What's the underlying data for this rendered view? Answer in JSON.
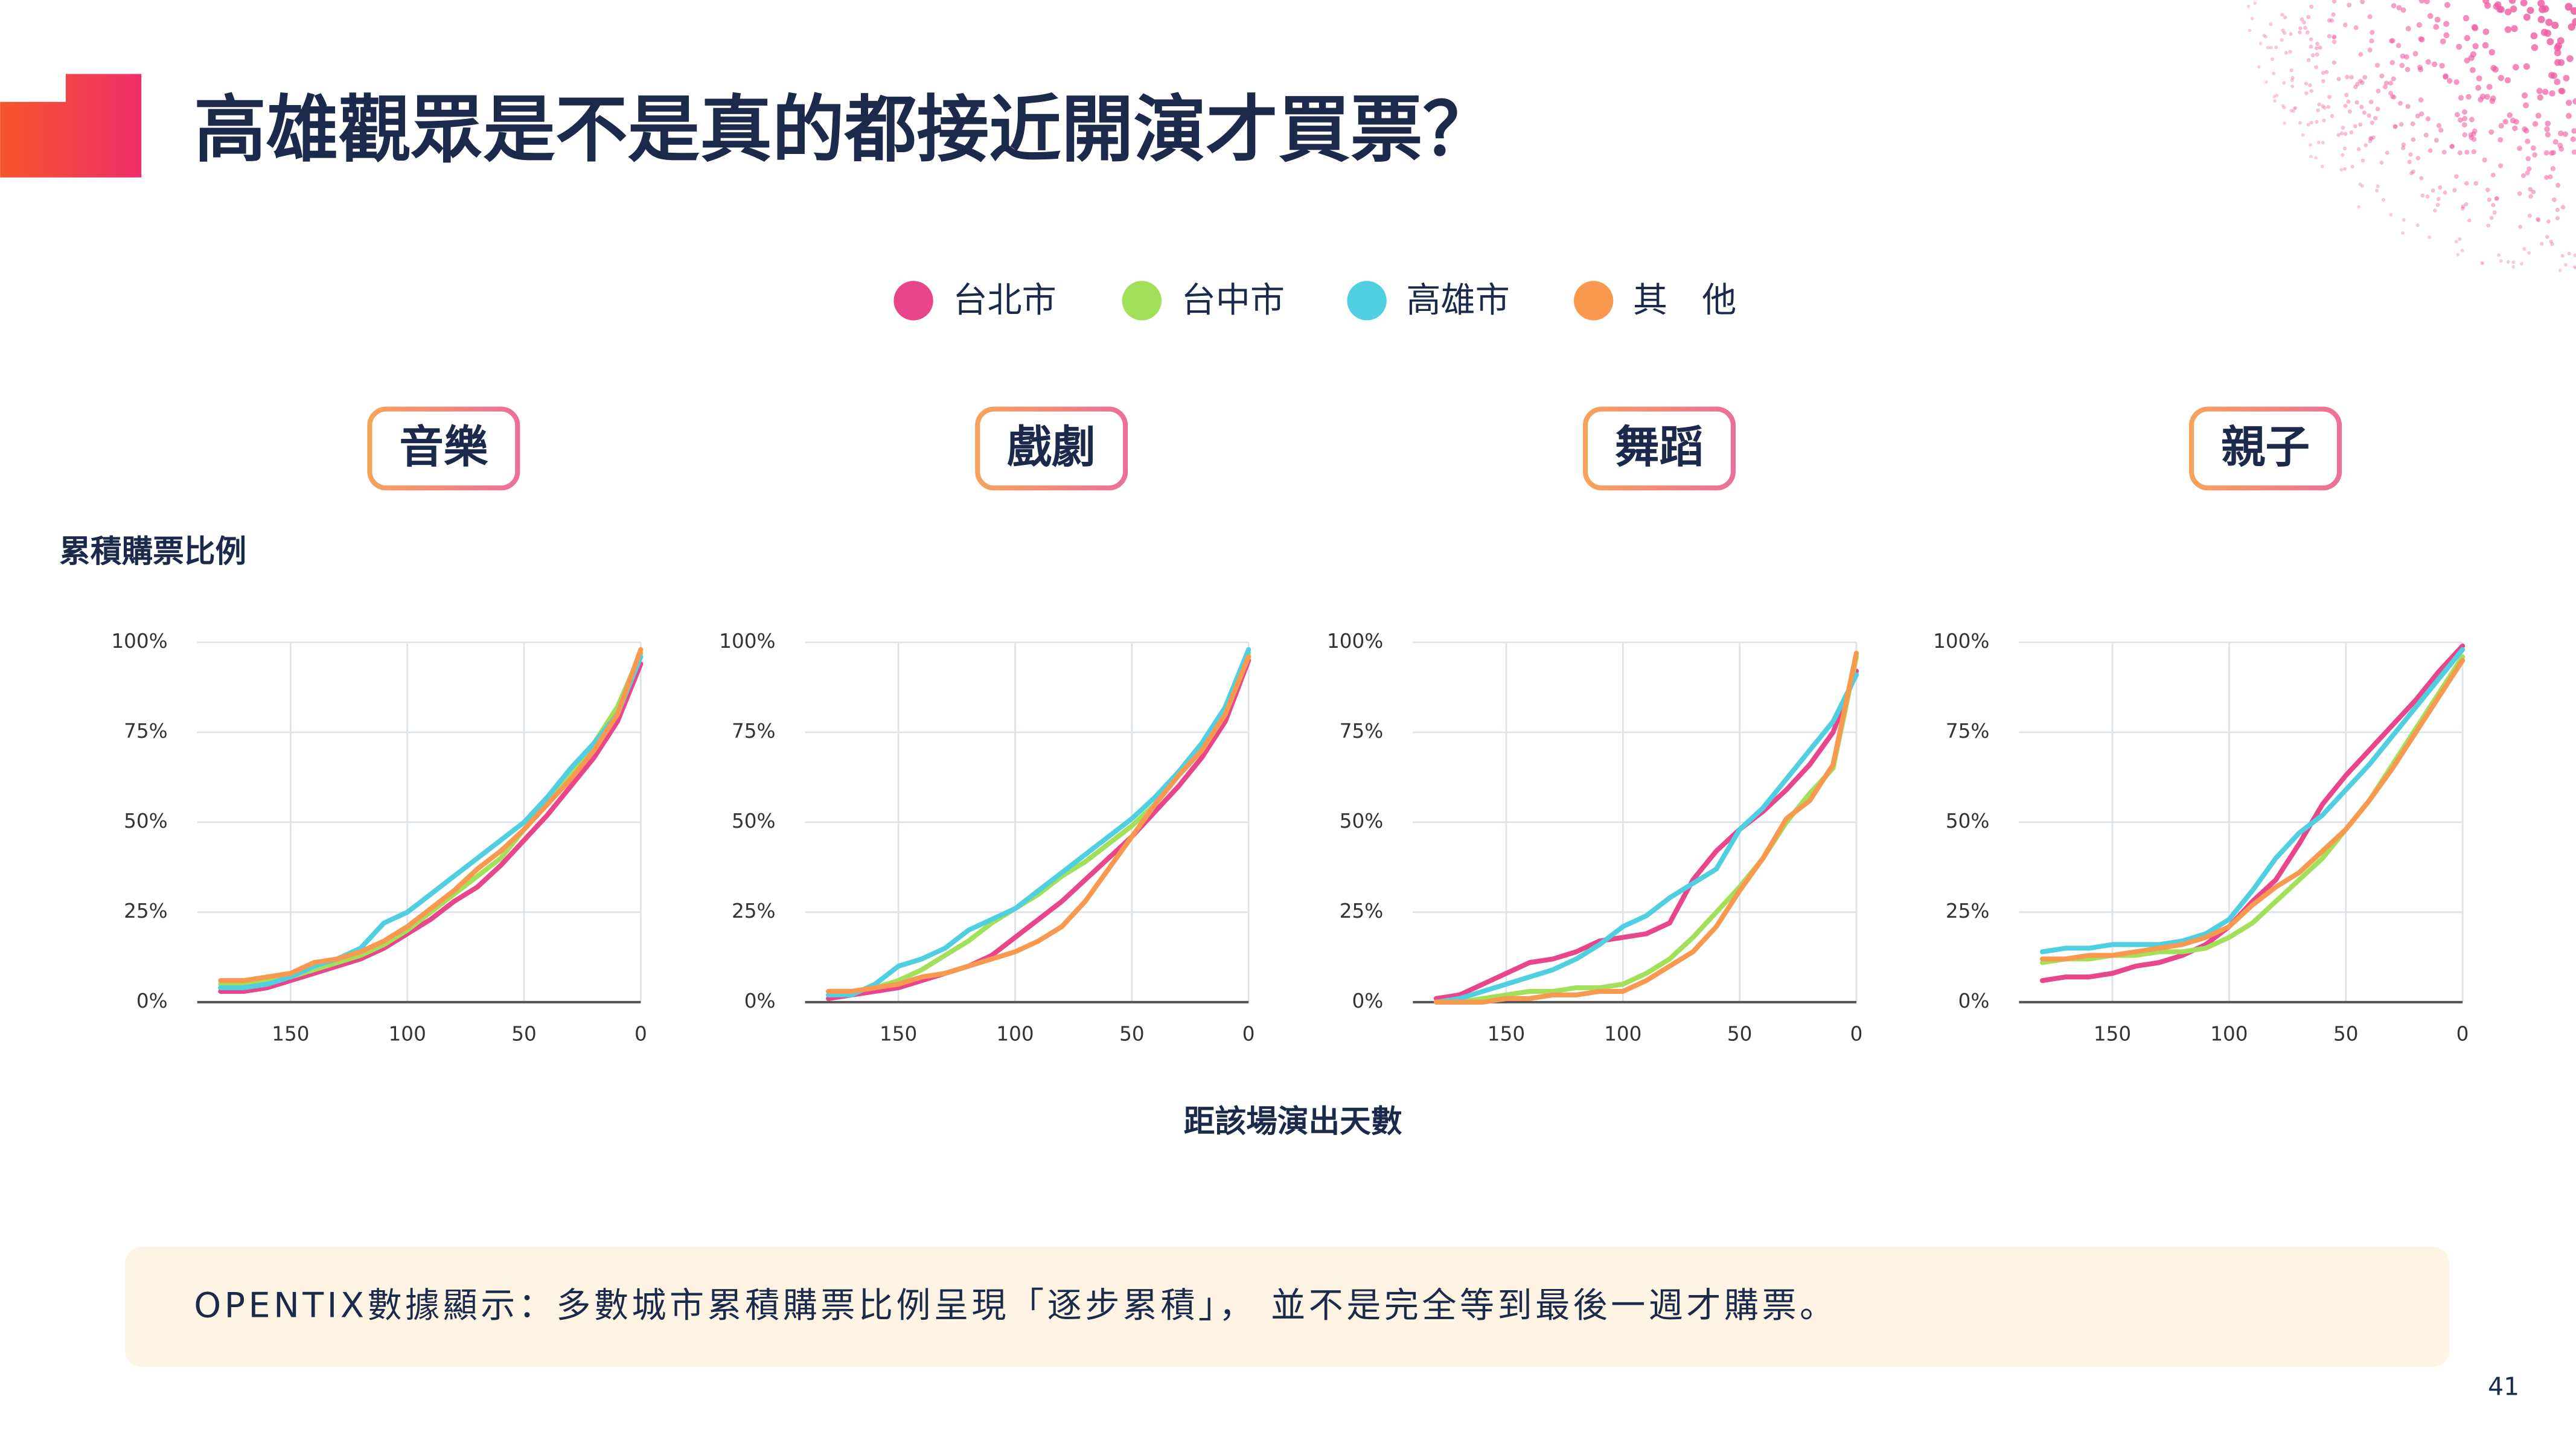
{
  "title": "高雄觀眾是不是真的都接近開演才買票？",
  "y_axis_label": "累積購票比例",
  "x_axis_label": "距該場演出天數",
  "note": "OPENTIX數據顯示：多數城市累積購票比例呈現「逐步累積」， 並不是完全等到最後一週才購票。",
  "page_number": "41",
  "chart_data": [
    {
      "type": "line",
      "title": "音樂",
      "x": [
        180,
        170,
        160,
        150,
        140,
        130,
        120,
        110,
        100,
        90,
        80,
        70,
        60,
        50,
        40,
        30,
        20,
        10,
        0
      ],
      "xlim": [
        190,
        0
      ],
      "xticks": [
        150,
        100,
        50,
        0
      ],
      "ylim": [
        0,
        100
      ],
      "yticks": [
        {
          "value": 0,
          "label": "0%"
        },
        {
          "value": 25,
          "label": "25%"
        },
        {
          "value": 50,
          "label": "50%"
        },
        {
          "value": 75,
          "label": "75%"
        },
        {
          "value": 100,
          "label": "100%"
        }
      ],
      "grid": true,
      "series": [
        {
          "name": "台北市",
          "color": "#e8458b",
          "values": [
            3,
            3,
            4,
            6,
            8,
            10,
            12,
            15,
            19,
            23,
            28,
            32,
            38,
            45,
            52,
            60,
            68,
            78,
            94
          ]
        },
        {
          "name": "台中市",
          "color": "#a3e05a",
          "values": [
            5,
            5,
            6,
            7,
            9,
            11,
            13,
            16,
            20,
            25,
            30,
            35,
            40,
            48,
            55,
            63,
            72,
            82,
            97
          ]
        },
        {
          "name": "高雄市",
          "color": "#4fcfe0",
          "values": [
            4,
            4,
            5,
            7,
            10,
            12,
            15,
            22,
            25,
            30,
            35,
            40,
            45,
            50,
            57,
            65,
            72,
            80,
            96
          ]
        },
        {
          "name": "其　他",
          "color": "#f8994f",
          "values": [
            6,
            6,
            7,
            8,
            11,
            12,
            14,
            17,
            21,
            26,
            31,
            37,
            42,
            48,
            55,
            62,
            70,
            80,
            98
          ]
        }
      ]
    },
    {
      "type": "line",
      "title": "戲劇",
      "x": [
        180,
        170,
        160,
        150,
        140,
        130,
        120,
        110,
        100,
        90,
        80,
        70,
        60,
        50,
        40,
        30,
        20,
        10,
        0
      ],
      "xlim": [
        190,
        0
      ],
      "xticks": [
        150,
        100,
        50,
        0
      ],
      "ylim": [
        0,
        100
      ],
      "yticks": [
        {
          "value": 0,
          "label": "0%"
        },
        {
          "value": 25,
          "label": "25%"
        },
        {
          "value": 50,
          "label": "50%"
        },
        {
          "value": 75,
          "label": "75%"
        },
        {
          "value": 100,
          "label": "100%"
        }
      ],
      "grid": true,
      "series": [
        {
          "color": "#e8458b",
          "values": [
            1,
            2,
            3,
            4,
            6,
            8,
            10,
            13,
            18,
            23,
            28,
            34,
            40,
            46,
            53,
            60,
            68,
            78,
            95
          ]
        },
        {
          "color": "#a3e05a",
          "values": [
            3,
            3,
            4,
            6,
            9,
            13,
            17,
            22,
            26,
            30,
            35,
            39,
            44,
            49,
            55,
            63,
            71,
            80,
            97
          ]
        },
        {
          "color": "#4fcfe0",
          "values": [
            2,
            2,
            5,
            10,
            12,
            15,
            20,
            23,
            26,
            31,
            36,
            41,
            46,
            51,
            57,
            64,
            72,
            82,
            98
          ]
        },
        {
          "color": "#f8994f",
          "values": [
            3,
            3,
            4,
            5,
            7,
            8,
            10,
            12,
            14,
            17,
            21,
            28,
            37,
            46,
            55,
            63,
            70,
            80,
            96
          ]
        }
      ]
    },
    {
      "type": "line",
      "title": "舞蹈",
      "x": [
        180,
        170,
        160,
        150,
        140,
        130,
        120,
        110,
        100,
        90,
        80,
        70,
        60,
        50,
        40,
        30,
        20,
        10,
        0
      ],
      "xlim": [
        190,
        0
      ],
      "xticks": [
        150,
        100,
        50,
        0
      ],
      "ylim": [
        0,
        100
      ],
      "yticks": [
        {
          "value": 0,
          "label": "0%"
        },
        {
          "value": 25,
          "label": "25%"
        },
        {
          "value": 50,
          "label": "50%"
        },
        {
          "value": 75,
          "label": "75%"
        },
        {
          "value": 100,
          "label": "100%"
        }
      ],
      "grid": true,
      "series": [
        {
          "color": "#e8458b",
          "values": [
            1,
            2,
            5,
            8,
            11,
            12,
            14,
            17,
            18,
            19,
            22,
            34,
            42,
            48,
            53,
            59,
            66,
            75,
            92
          ]
        },
        {
          "color": "#a3e05a",
          "values": [
            0,
            0,
            1,
            2,
            3,
            3,
            4,
            4,
            5,
            8,
            12,
            18,
            25,
            32,
            40,
            50,
            58,
            65,
            96
          ]
        },
        {
          "color": "#4fcfe0",
          "values": [
            0,
            1,
            3,
            5,
            7,
            9,
            12,
            16,
            21,
            24,
            29,
            33,
            37,
            48,
            54,
            62,
            70,
            78,
            91
          ]
        },
        {
          "color": "#f8994f",
          "values": [
            0,
            0,
            0,
            1,
            1,
            2,
            2,
            3,
            3,
            6,
            10,
            14,
            21,
            31,
            40,
            51,
            56,
            66,
            97
          ]
        }
      ]
    },
    {
      "type": "line",
      "title": "親子",
      "x": [
        180,
        170,
        160,
        150,
        140,
        130,
        120,
        110,
        100,
        90,
        80,
        70,
        60,
        50,
        40,
        30,
        20,
        10,
        0
      ],
      "xlim": [
        190,
        0
      ],
      "xticks": [
        150,
        100,
        50,
        0
      ],
      "ylim": [
        0,
        100
      ],
      "yticks": [
        {
          "value": 0,
          "label": "0%"
        },
        {
          "value": 25,
          "label": "25%"
        },
        {
          "value": 50,
          "label": "50%"
        },
        {
          "value": 75,
          "label": "75%"
        },
        {
          "value": 100,
          "label": "100%"
        }
      ],
      "grid": true,
      "series": [
        {
          "color": "#e8458b",
          "values": [
            6,
            7,
            7,
            8,
            10,
            11,
            13,
            16,
            21,
            28,
            34,
            44,
            55,
            63,
            70,
            77,
            84,
            92,
            99
          ]
        },
        {
          "color": "#a3e05a",
          "values": [
            11,
            12,
            12,
            13,
            13,
            14,
            14,
            15,
            18,
            22,
            28,
            34,
            40,
            48,
            56,
            66,
            76,
            86,
            96
          ]
        },
        {
          "color": "#4fcfe0",
          "values": [
            14,
            15,
            15,
            16,
            16,
            16,
            17,
            19,
            23,
            31,
            40,
            47,
            52,
            59,
            66,
            74,
            82,
            90,
            98
          ]
        },
        {
          "color": "#f8994f",
          "values": [
            12,
            12,
            13,
            13,
            14,
            15,
            16,
            18,
            21,
            27,
            32,
            36,
            42,
            48,
            56,
            65,
            75,
            85,
            95
          ]
        }
      ]
    }
  ]
}
